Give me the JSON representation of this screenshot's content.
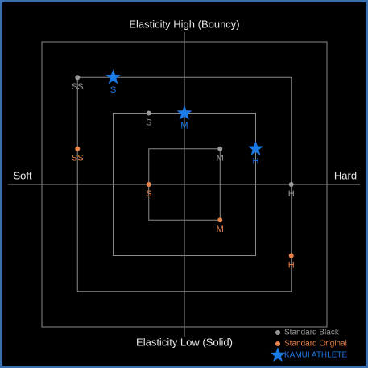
{
  "chart_data": {
    "type": "scatter",
    "title": "Elasticity High (Bouncy)",
    "bottom_label": "Elasticity Low (Solid)",
    "left_label": "Soft",
    "right_label": "Hard",
    "xlim": [
      -4,
      4
    ],
    "ylim": [
      -4,
      4
    ],
    "series": [
      {
        "name": "Standard Black",
        "color": "#9a9a9a",
        "marker": "circle",
        "labels": [
          "SS",
          "S",
          "M",
          "H"
        ],
        "x": [
          -3,
          -1,
          1,
          3
        ],
        "values": [
          3,
          2,
          1,
          0
        ]
      },
      {
        "name": "Standard Original",
        "color": "#e8834a",
        "marker": "circle",
        "labels": [
          "SS",
          "S",
          "M",
          "H"
        ],
        "x": [
          -3,
          -1,
          1,
          3
        ],
        "values": [
          1,
          0,
          -1,
          -2
        ]
      },
      {
        "name": "KAMUI ATHLETE",
        "color": "#1a7ae8",
        "marker": "star",
        "labels": [
          "S",
          "M",
          "H"
        ],
        "x": [
          -2,
          0,
          2
        ],
        "values": [
          3,
          2,
          1
        ]
      }
    ]
  }
}
